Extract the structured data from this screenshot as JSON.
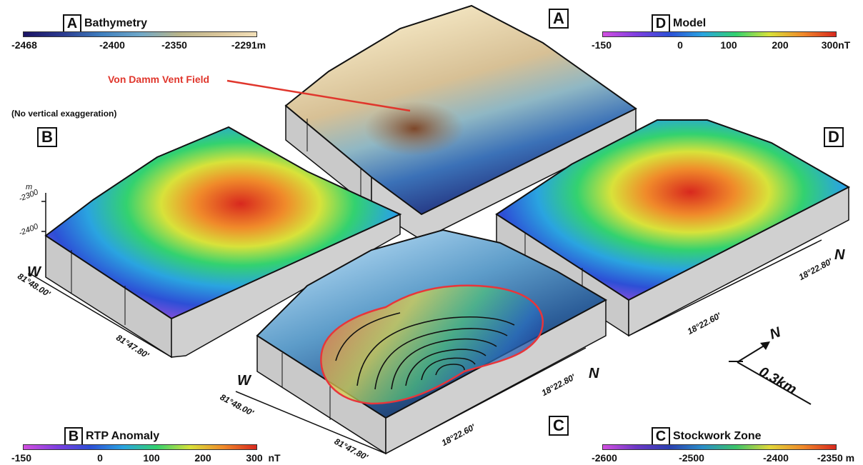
{
  "colorbars": {
    "bathymetry": {
      "letter": "A",
      "label": "Bathymetry",
      "ticks": [
        "-2468",
        "-2400",
        "-2350",
        "-2291m"
      ],
      "colors": [
        "#1b1464",
        "#2b3a8f",
        "#3f7fbf",
        "#6fa8c9",
        "#b9b48a",
        "#d9c59a",
        "#f2dfb8"
      ]
    },
    "model": {
      "letter": "D",
      "label": "Model",
      "ticks": [
        "-150",
        "0",
        "100",
        "200",
        "300nT"
      ],
      "colors": [
        "#d24fe0",
        "#7f3fe0",
        "#2d4fd6",
        "#2aa4e0",
        "#33d26f",
        "#d8e23a",
        "#f08a2a",
        "#d8281e"
      ]
    },
    "rtp": {
      "letter": "B",
      "label": "RTP Anomaly",
      "ticks": [
        "-150",
        "0",
        "100",
        "200",
        "300",
        "nT"
      ],
      "colors": [
        "#d24fe0",
        "#7f3fe0",
        "#2d4fd6",
        "#2aa4e0",
        "#33d26f",
        "#d8e23a",
        "#f08a2a",
        "#d8281e"
      ]
    },
    "stockwork": {
      "letter": "C",
      "label": "Stockwork Zone",
      "ticks": [
        "-2600",
        "-2500",
        "-2400",
        "-2350 m"
      ],
      "colors": [
        "#d24fe0",
        "#6c38c6",
        "#2a3fb0",
        "#2a8ec8",
        "#3bc46a",
        "#e1d83a",
        "#f08a2a",
        "#d8281e"
      ]
    }
  },
  "panels": {
    "A": {
      "letter": "A"
    },
    "B": {
      "letter": "B"
    },
    "C": {
      "letter": "C"
    },
    "D": {
      "letter": "D"
    }
  },
  "annotations": {
    "vent_field": "Von Damm Vent Field",
    "no_vertical": "(No vertical exaggeration)",
    "axis_unit": "m",
    "axis_top": "-2300",
    "axis_bottom": "-2400"
  },
  "coordinates": {
    "b_lon1": "81°48.00'",
    "b_lon2": "81°47.80'",
    "c_lon1": "81°48.00'",
    "c_lon2": "81°47.80'",
    "c_lat1": "18°22.80'",
    "c_lat2": "18°22.60'",
    "d_lat1": "18°22.80'",
    "d_lat2": "18°22.60'"
  },
  "directions": {
    "b_w": "W",
    "c_w": "W",
    "c_n": "N",
    "d_n": "N",
    "compass_n": "N"
  },
  "scale": {
    "label": "0.3km"
  }
}
